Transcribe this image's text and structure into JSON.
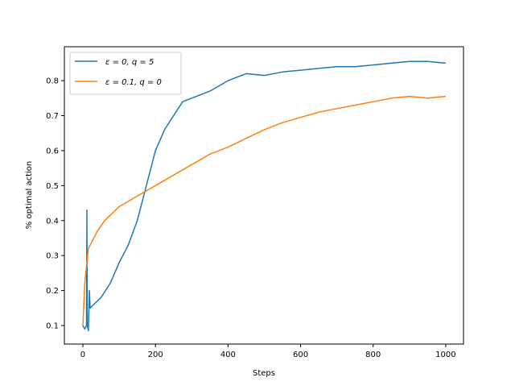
{
  "chart_data": {
    "type": "line",
    "title": "",
    "xlabel": "Steps",
    "ylabel": "% optimal action",
    "xlim": [
      -51,
      1049
    ],
    "ylim": [
      0.047,
      0.897
    ],
    "xticks": [
      0,
      200,
      400,
      600,
      800,
      1000
    ],
    "yticks": [
      0.1,
      0.2,
      0.3,
      0.4,
      0.5,
      0.6,
      0.7,
      0.8
    ],
    "grid": false,
    "legend_position": "top-left",
    "series": [
      {
        "name": "ε = 0, q = 5",
        "color": "#1f77b4",
        "x": [
          0,
          5,
          10,
          11,
          12,
          15,
          18,
          20,
          30,
          50,
          75,
          100,
          125,
          150,
          175,
          200,
          225,
          250,
          275,
          300,
          350,
          400,
          450,
          500,
          550,
          600,
          650,
          700,
          750,
          800,
          850,
          900,
          950,
          1000
        ],
        "y": [
          0.1,
          0.09,
          0.1,
          0.43,
          0.1,
          0.085,
          0.2,
          0.15,
          0.16,
          0.18,
          0.22,
          0.28,
          0.33,
          0.4,
          0.5,
          0.6,
          0.66,
          0.7,
          0.74,
          0.75,
          0.77,
          0.8,
          0.82,
          0.815,
          0.825,
          0.83,
          0.835,
          0.84,
          0.84,
          0.845,
          0.85,
          0.855,
          0.855,
          0.85
        ]
      },
      {
        "name": "ε = 0.1, q = 0",
        "color": "#ff7f0e",
        "x": [
          0,
          5,
          10,
          15,
          25,
          40,
          60,
          80,
          100,
          150,
          200,
          250,
          300,
          350,
          400,
          450,
          500,
          550,
          600,
          650,
          700,
          750,
          800,
          850,
          900,
          950,
          1000
        ],
        "y": [
          0.1,
          0.22,
          0.27,
          0.32,
          0.34,
          0.37,
          0.4,
          0.42,
          0.44,
          0.47,
          0.5,
          0.53,
          0.56,
          0.59,
          0.61,
          0.635,
          0.66,
          0.68,
          0.695,
          0.71,
          0.72,
          0.73,
          0.74,
          0.75,
          0.755,
          0.75,
          0.755
        ]
      }
    ]
  }
}
